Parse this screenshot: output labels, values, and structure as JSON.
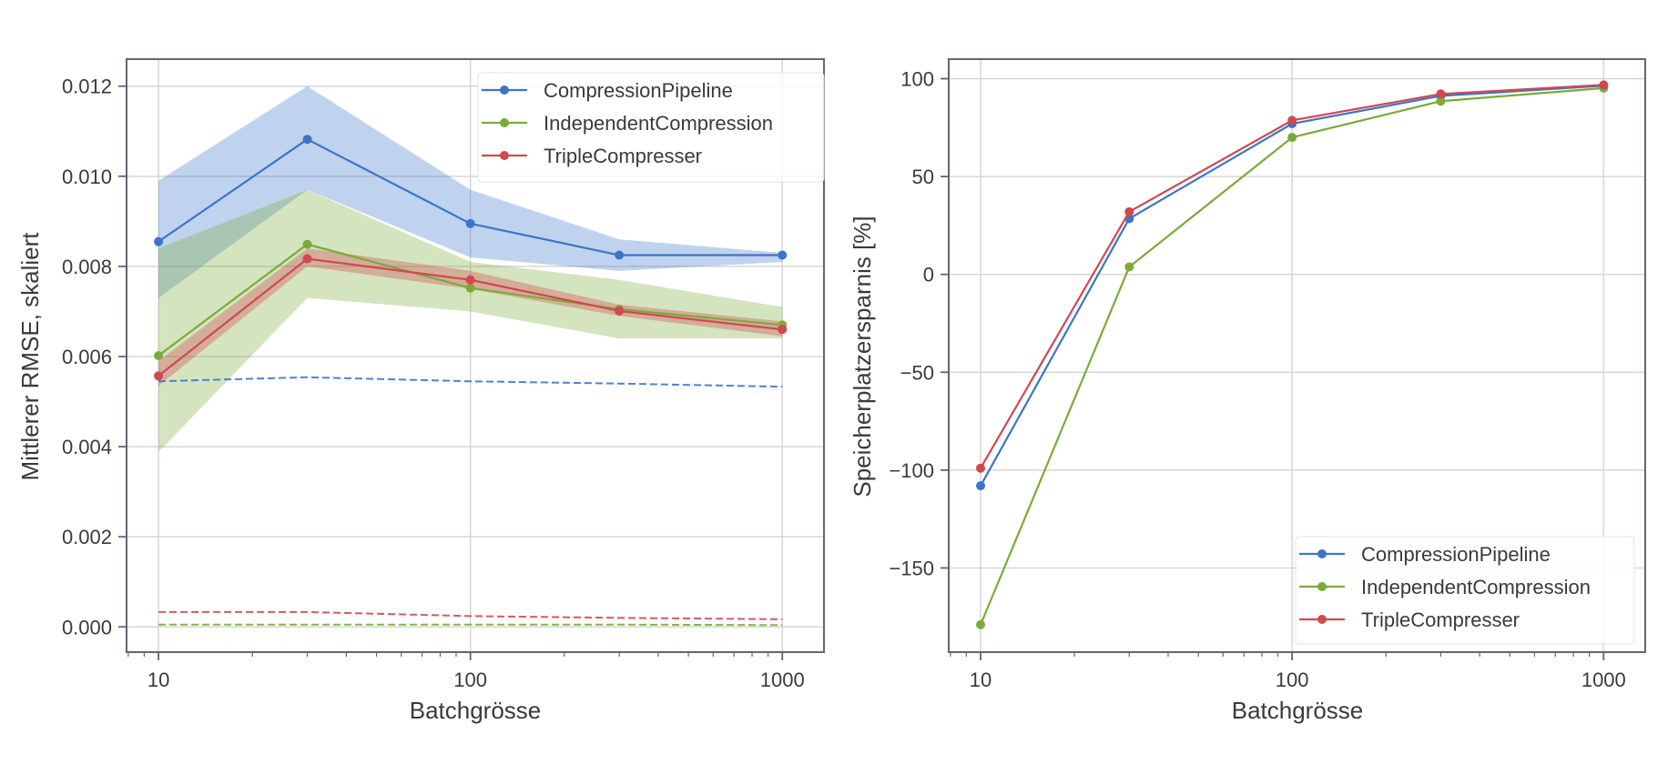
{
  "chart_data": [
    {
      "type": "line",
      "title": "",
      "xlabel": "Batchgrösse",
      "ylabel": "Mittlerer RMSE, skaliert",
      "xscale": "log",
      "x": [
        10,
        30,
        100,
        300,
        1000
      ],
      "xlim": [
        7.9,
        1360
      ],
      "ylim": [
        -0.00056,
        0.0126
      ],
      "xticks": [
        10,
        100,
        1000
      ],
      "xtick_labels": [
        "10",
        "100",
        "1000"
      ],
      "yticks": [
        0.0,
        0.002,
        0.004,
        0.006,
        0.008,
        0.01,
        0.012
      ],
      "ytick_labels": [
        "0.000",
        "0.002",
        "0.004",
        "0.006",
        "0.008",
        "0.010",
        "0.012"
      ],
      "grid": true,
      "legend_position": "top-right",
      "series": [
        {
          "name": "CompressionPipeline",
          "color": "#3b75c9",
          "values": [
            0.00855,
            0.01082,
            0.00895,
            0.00825,
            0.00825
          ],
          "band_lower": [
            0.0073,
            0.0097,
            0.0082,
            0.0079,
            0.0081
          ],
          "band_upper": [
            0.0099,
            0.012,
            0.0097,
            0.0086,
            0.0083
          ],
          "baseline_dashed": [
            0.00545,
            0.00554,
            0.00545,
            0.0054,
            0.00533
          ]
        },
        {
          "name": "IndependentCompression",
          "color": "#7aab38",
          "values": [
            0.00602,
            0.00849,
            0.00752,
            0.00705,
            0.0067
          ],
          "band_lower": [
            0.00388,
            0.0073,
            0.007,
            0.0064,
            0.0064
          ],
          "band_upper": [
            0.0084,
            0.0097,
            0.0081,
            0.0077,
            0.0071
          ],
          "baseline_dashed": [
            5e-05,
            5e-05,
            5e-05,
            5e-05,
            4e-05
          ]
        },
        {
          "name": "TripleCompresser",
          "color": "#d1484f",
          "values": [
            0.00557,
            0.00817,
            0.0077,
            0.00701,
            0.0066
          ],
          "band_lower": [
            0.00535,
            0.008,
            0.0075,
            0.0069,
            0.00645
          ],
          "band_upper": [
            0.0059,
            0.0084,
            0.0079,
            0.00715,
            0.00678
          ],
          "baseline_dashed": [
            0.00033,
            0.00033,
            0.00024,
            0.0002,
            0.00017
          ]
        }
      ]
    },
    {
      "type": "line",
      "title": "",
      "xlabel": "Batchgrösse",
      "ylabel": "Speicherplatzersparnis [%]",
      "xscale": "log",
      "x": [
        10,
        30,
        100,
        300,
        1000
      ],
      "xlim": [
        7.9,
        1360
      ],
      "ylim": [
        -193,
        110
      ],
      "xticks": [
        10,
        100,
        1000
      ],
      "xtick_labels": [
        "10",
        "100",
        "1000"
      ],
      "yticks": [
        -150,
        -100,
        -50,
        0,
        50,
        100
      ],
      "ytick_labels": [
        "−150",
        "−100",
        "−50",
        "0",
        "50",
        "100"
      ],
      "grid": true,
      "legend_position": "bottom-right",
      "series": [
        {
          "name": "CompressionPipeline",
          "color": "#3b75c9",
          "values": [
            -108,
            28.5,
            77,
            91.2,
            96.4
          ]
        },
        {
          "name": "IndependentCompression",
          "color": "#7aab38",
          "values": [
            -179,
            3.8,
            70,
            88.5,
            95.2
          ]
        },
        {
          "name": "TripleCompresser",
          "color": "#d1484f",
          "values": [
            -99,
            32,
            78.7,
            92.2,
            96.8
          ]
        }
      ]
    }
  ]
}
